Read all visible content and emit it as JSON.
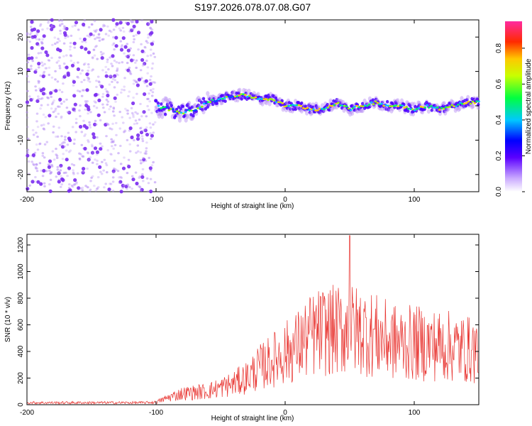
{
  "title": "S197.2026.078.07.08.G07",
  "colors": {
    "snr_line": "#e8322e",
    "spectrum_dot": "#7b2cf0",
    "axis": "#000000"
  },
  "spectrogram": {
    "chart_data": {
      "type": "heatmap",
      "xlabel": "Height of straight line (km)",
      "ylabel": "Frequency (Hz)",
      "xlim": [
        -200,
        150
      ],
      "ylim": [
        -25,
        25
      ],
      "xticks": [
        -200,
        -100,
        0,
        100
      ],
      "yticks": [
        20,
        10,
        0,
        -10,
        -20
      ],
      "ridge": {
        "x": [
          -100,
          -90,
          -80,
          -70,
          -60,
          -50,
          -40,
          -30,
          -20,
          -10,
          0,
          10,
          20,
          30,
          40,
          50,
          60,
          70,
          80,
          90,
          100,
          110,
          120,
          130,
          140,
          150
        ],
        "y": [
          0,
          -1,
          -2,
          -1,
          1,
          2,
          3,
          3,
          2,
          2,
          0,
          0,
          -1,
          -1,
          1,
          -1,
          0,
          1,
          0,
          0,
          -1,
          0,
          -1,
          0,
          1,
          1
        ]
      },
      "noise_region": [
        -200,
        -100
      ]
    },
    "colorbar": {
      "label": "Normalized spectral amplitude",
      "range": [
        0,
        0.95
      ],
      "ticks": [
        "0.0",
        "0.2",
        "0.4",
        "0.6",
        "0.8"
      ],
      "tick_values": [
        0,
        0.2,
        0.4,
        0.6,
        0.8
      ]
    }
  },
  "snr": {
    "chart_data": {
      "type": "line",
      "xlabel": "Height of straight line (km)",
      "ylabel": "SNR (10 * v/v)",
      "xlim": [
        -200,
        150
      ],
      "ylim": [
        0,
        1280
      ],
      "xticks": [
        -200,
        -100,
        0,
        100
      ],
      "yticks": [
        0,
        200,
        400,
        600,
        800,
        1000,
        1200
      ],
      "envelope": {
        "x": [
          -200,
          -110,
          -100,
          -90,
          -80,
          -70,
          -60,
          -50,
          -40,
          -30,
          -20,
          -10,
          0,
          10,
          20,
          30,
          40,
          50,
          60,
          70,
          80,
          90,
          100,
          110,
          120,
          130,
          140,
          150
        ],
        "y": [
          15,
          15,
          20,
          60,
          90,
          100,
          110,
          140,
          170,
          220,
          300,
          360,
          420,
          480,
          560,
          600,
          600,
          610,
          600,
          560,
          520,
          500,
          500,
          490,
          480,
          470,
          450,
          440
        ]
      },
      "peak": {
        "x": 50,
        "y": 1270
      }
    }
  }
}
